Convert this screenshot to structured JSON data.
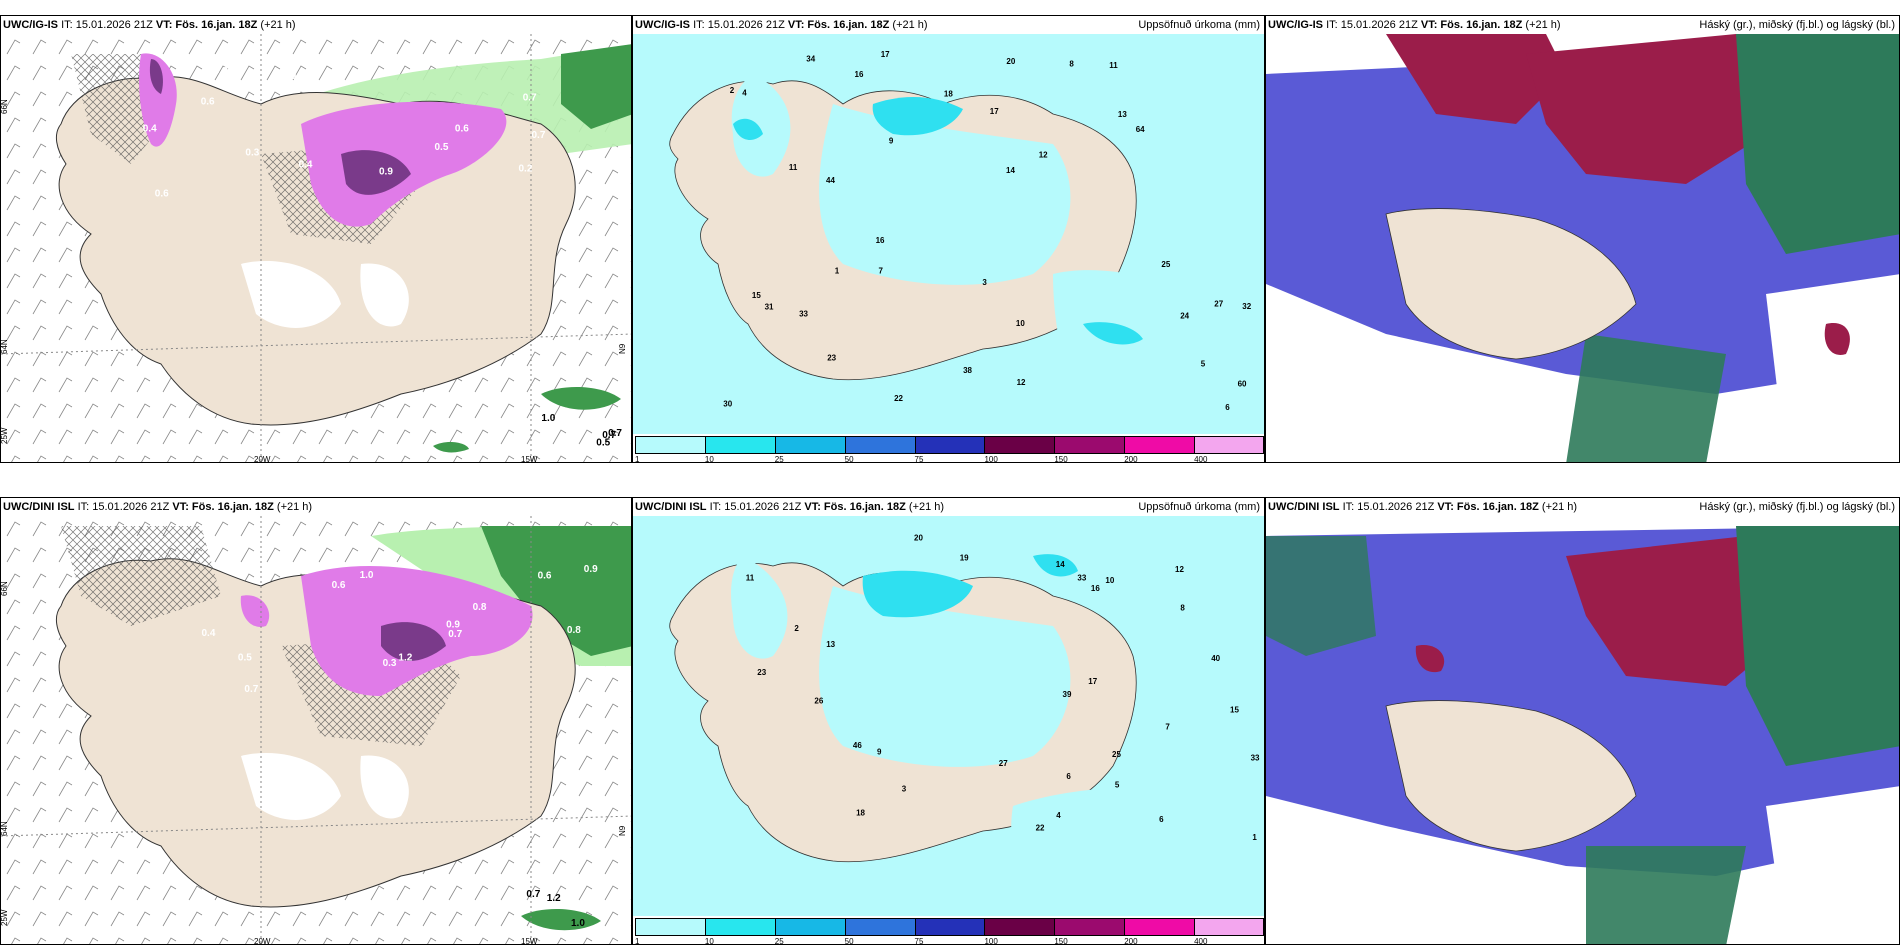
{
  "colors": {
    "land": "#efe3d4",
    "precip_light": "#b6fafc",
    "precip_med": "#2fe0f0",
    "cloud_blue": "#5a5ad6",
    "cloud_red": "#9b1d4a",
    "cloud_green": "#2d7a5a",
    "snow_pink": "#e07be8",
    "snow_purple": "#7a3a8a",
    "wind_green": "#3e9a4c"
  },
  "rows": [
    {
      "model": "UWC/IG-IS",
      "panels": [
        {
          "model": "UWC/IG-IS",
          "it": "IT: 15.01.2026 21Z",
          "vt": "VT: Fös. 16.jan. 18Z",
          "lead": "(+21 h)",
          "right_title": ""
        },
        {
          "model": "UWC/IG-IS",
          "it": "IT: 15.01.2026 21Z",
          "vt": "VT: Fös. 16.jan. 18Z",
          "lead": "(+21 h)",
          "right_title": "Uppsöfnuð úrkoma (mm)"
        },
        {
          "model": "UWC/IG-IS",
          "it": "IT: 15.01.2026 21Z",
          "vt": "VT: Fös. 16.jan. 18Z",
          "lead": "(+21 h)",
          "right_title": "Háský (gr.), miðský (fj.bl.) og lágský (bl.)"
        }
      ],
      "snow_values": [
        "0.4",
        "0.6",
        "0.5",
        "0.7",
        "0.6",
        "0.8",
        "0.3",
        "0.2",
        "0.4",
        "0.5",
        "0.7",
        "0.6",
        "0.9",
        "0.3"
      ],
      "wind_values": [
        "1.0",
        "0.7",
        "0.5",
        "0.7"
      ],
      "precip_values": [
        "2",
        "3",
        "9",
        "10",
        "12",
        "11",
        "33",
        "27",
        "31",
        "44",
        "64",
        "25",
        "30",
        "17",
        "34",
        "60",
        "38",
        "14",
        "16",
        "32",
        "23",
        "18",
        "22",
        "12",
        "8",
        "6",
        "5",
        "7",
        "4",
        "20",
        "13",
        "15",
        "24",
        "16",
        "17",
        "11",
        "1"
      ]
    },
    {
      "model": "UWC/DINI ISL",
      "panels": [
        {
          "model": "UWC/DINI ISL",
          "it": "IT: 15.01.2026 21Z",
          "vt": "VT: Fös. 16.jan. 18Z",
          "lead": "(+21 h)",
          "right_title": ""
        },
        {
          "model": "UWC/DINI ISL",
          "it": "IT: 15.01.2026 21Z",
          "vt": "VT: Fös. 16.jan. 18Z",
          "lead": "(+21 h)",
          "right_title": "Uppsöfnuð úrkoma (mm)"
        },
        {
          "model": "UWC/DINI ISL",
          "it": "IT: 15.01.2026 21Z",
          "vt": "VT: Fös. 16.jan. 18Z",
          "lead": "(+21 h)",
          "right_title": "Háský (gr.), miðský (fj.bl.) og lágský (bl.)"
        }
      ],
      "snow_values": [
        "0.6",
        "0.7",
        "0.9",
        "0.8",
        "0.5",
        "0.3",
        "1.2",
        "0.4",
        "0.6",
        "1.0",
        "0.8",
        "0.7",
        "0.9"
      ],
      "wind_values": [
        "1.2",
        "0.7",
        "1.0"
      ],
      "precip_values": [
        "1",
        "3",
        "6",
        "22",
        "33",
        "26",
        "39",
        "27",
        "40",
        "19",
        "46",
        "18",
        "20",
        "13",
        "14",
        "25",
        "10",
        "9",
        "8",
        "23",
        "6",
        "11",
        "17",
        "33",
        "5",
        "7",
        "4",
        "2",
        "12",
        "15",
        "16"
      ]
    }
  ],
  "axis_labels": {
    "lat66": "66N",
    "lat64": "64N",
    "lon25": "25W",
    "lon20": "20W",
    "lon15": "15W",
    "lon9": "N9"
  },
  "legend": {
    "ticks": [
      "1",
      "10",
      "25",
      "50",
      "75",
      "100",
      "150",
      "200",
      "400"
    ],
    "colors": [
      "#b6fafc",
      "#28e6ee",
      "#17b8e6",
      "#2e74dc",
      "#2431b8",
      "#6a0046",
      "#9b0a6e",
      "#ef0ba6",
      "#f3a6ee"
    ]
  }
}
